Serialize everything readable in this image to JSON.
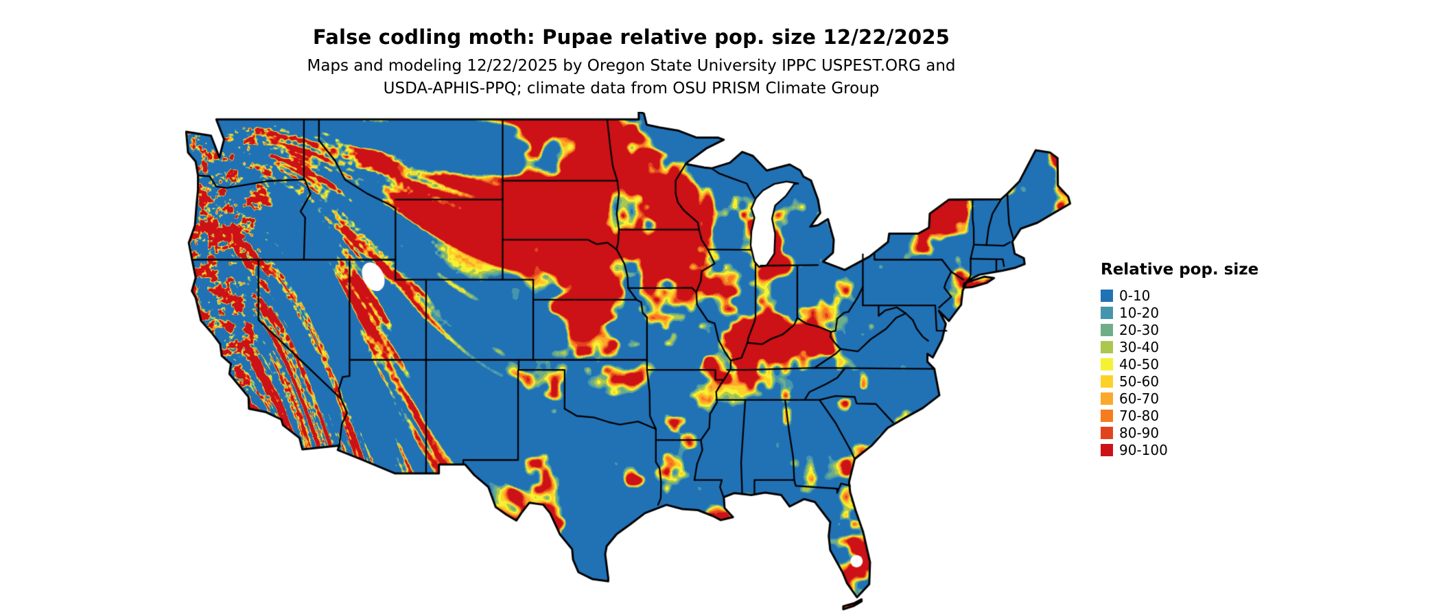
{
  "title": "False codling moth: Pupae relative pop. size 12/22/2025",
  "subtitle_line1": "Maps and modeling 12/22/2025 by Oregon State University IPPC USPEST.ORG and",
  "subtitle_line2": "USDA-APHIS-PPQ; climate data from OSU PRISM Climate Group",
  "legend": {
    "title": "Relative pop. size",
    "items": [
      {
        "label": "0-10",
        "color": "#2171b5"
      },
      {
        "label": "10-20",
        "color": "#4596ad"
      },
      {
        "label": "20-30",
        "color": "#6fad88"
      },
      {
        "label": "30-40",
        "color": "#abc74f"
      },
      {
        "label": "40-50",
        "color": "#f5f235"
      },
      {
        "label": "50-60",
        "color": "#fdd128"
      },
      {
        "label": "60-70",
        "color": "#fca82c"
      },
      {
        "label": "70-80",
        "color": "#f67c20"
      },
      {
        "label": "80-90",
        "color": "#e2431f"
      },
      {
        "label": "90-100",
        "color": "#cc1117"
      }
    ]
  },
  "map": {
    "region": "Contiguous United States",
    "border_color": "#000000",
    "water_color": "#ffffff",
    "background_color": "#ffffff"
  }
}
